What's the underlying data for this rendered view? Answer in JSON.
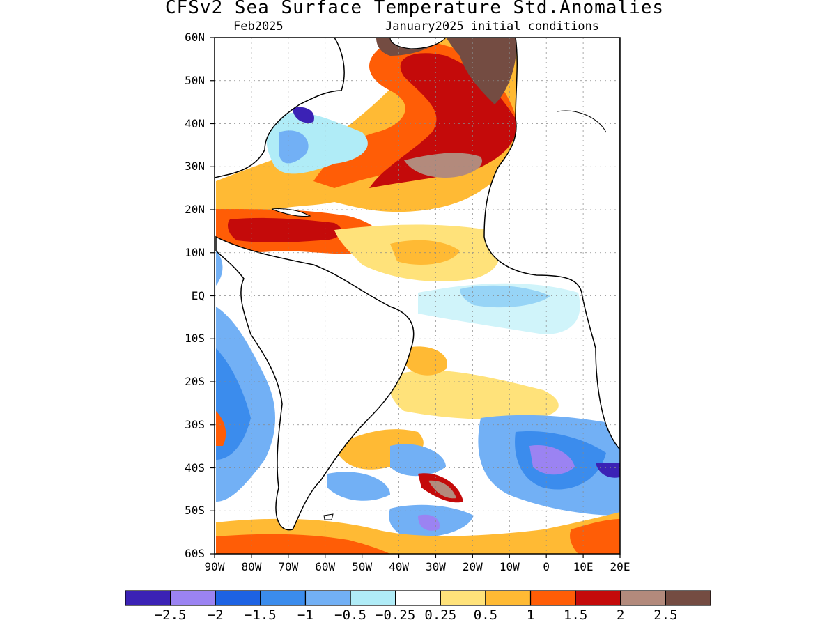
{
  "title": "CFSv2 Sea Surface Temperature Std.Anomalies",
  "subtitle_left": "Feb2025",
  "subtitle_right": "January2025 initial conditions",
  "map": {
    "type": "contour-map",
    "lon_range": [
      -90,
      20
    ],
    "lat_range": [
      -60,
      60
    ],
    "lat_ticks": [
      "60N",
      "50N",
      "40N",
      "30N",
      "20N",
      "10N",
      "EQ",
      "10S",
      "20S",
      "30S",
      "40S",
      "50S",
      "60S"
    ],
    "lon_ticks": [
      "90W",
      "80W",
      "70W",
      "60W",
      "50W",
      "40W",
      "30W",
      "20W",
      "10W",
      "0",
      "10E",
      "20E"
    ],
    "grid": true
  },
  "colorbar": {
    "colors": [
      "#3b22b5",
      "#9b83f2",
      "#1d62e3",
      "#3b8ced",
      "#72b0f5",
      "#b0ecf7",
      "#ffffff",
      "#ffe27a",
      "#ffba34",
      "#ff5d06",
      "#c40a0a",
      "#b38a7c",
      "#744c42"
    ],
    "labels": [
      "-2.5",
      "-2",
      "-1.5",
      "-1",
      "-0.5",
      "-0.25",
      "0.25",
      "0.5",
      "1",
      "1.5",
      "2",
      "2.5"
    ]
  }
}
